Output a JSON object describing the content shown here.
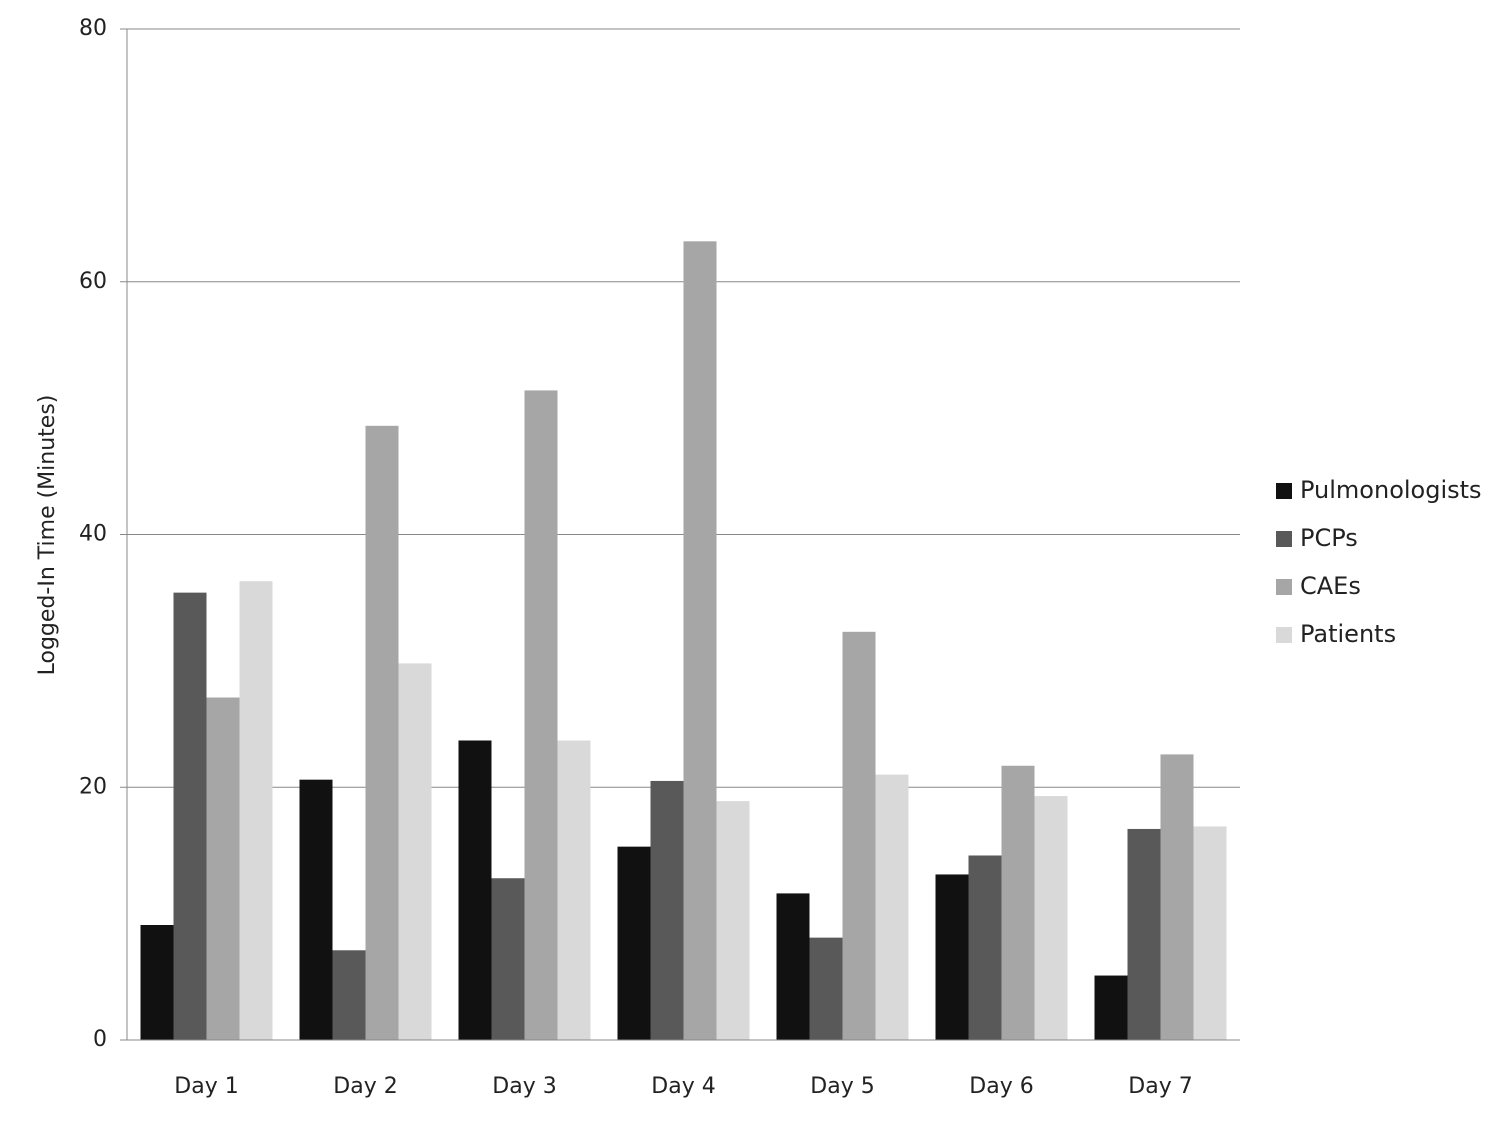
{
  "chart_data": {
    "type": "bar",
    "ylabel": "Logged-In Time (Minutes)",
    "categories": [
      "Day 1",
      "Day 2",
      "Day 3",
      "Day 4",
      "Day 5",
      "Day 6",
      "Day 7"
    ],
    "series": [
      {
        "name": "Pulmonologists",
        "color": "#111111",
        "values": [
          9.1,
          20.6,
          23.7,
          15.3,
          11.6,
          13.1,
          5.1
        ]
      },
      {
        "name": "PCPs",
        "color": "#595959",
        "values": [
          35.4,
          7.1,
          12.8,
          20.5,
          8.1,
          14.6,
          16.7
        ]
      },
      {
        "name": "CAEs",
        "color": "#a6a6a6",
        "values": [
          27.1,
          48.6,
          51.4,
          63.2,
          32.3,
          21.7,
          22.6
        ]
      },
      {
        "name": "Patients",
        "color": "#d9d9d9",
        "values": [
          36.3,
          29.8,
          23.7,
          18.9,
          21.0,
          19.3,
          16.9
        ]
      }
    ],
    "ylim": [
      0,
      80
    ],
    "yticks": [
      0,
      20,
      40,
      60,
      80
    ],
    "grid": true,
    "legend": "right"
  }
}
